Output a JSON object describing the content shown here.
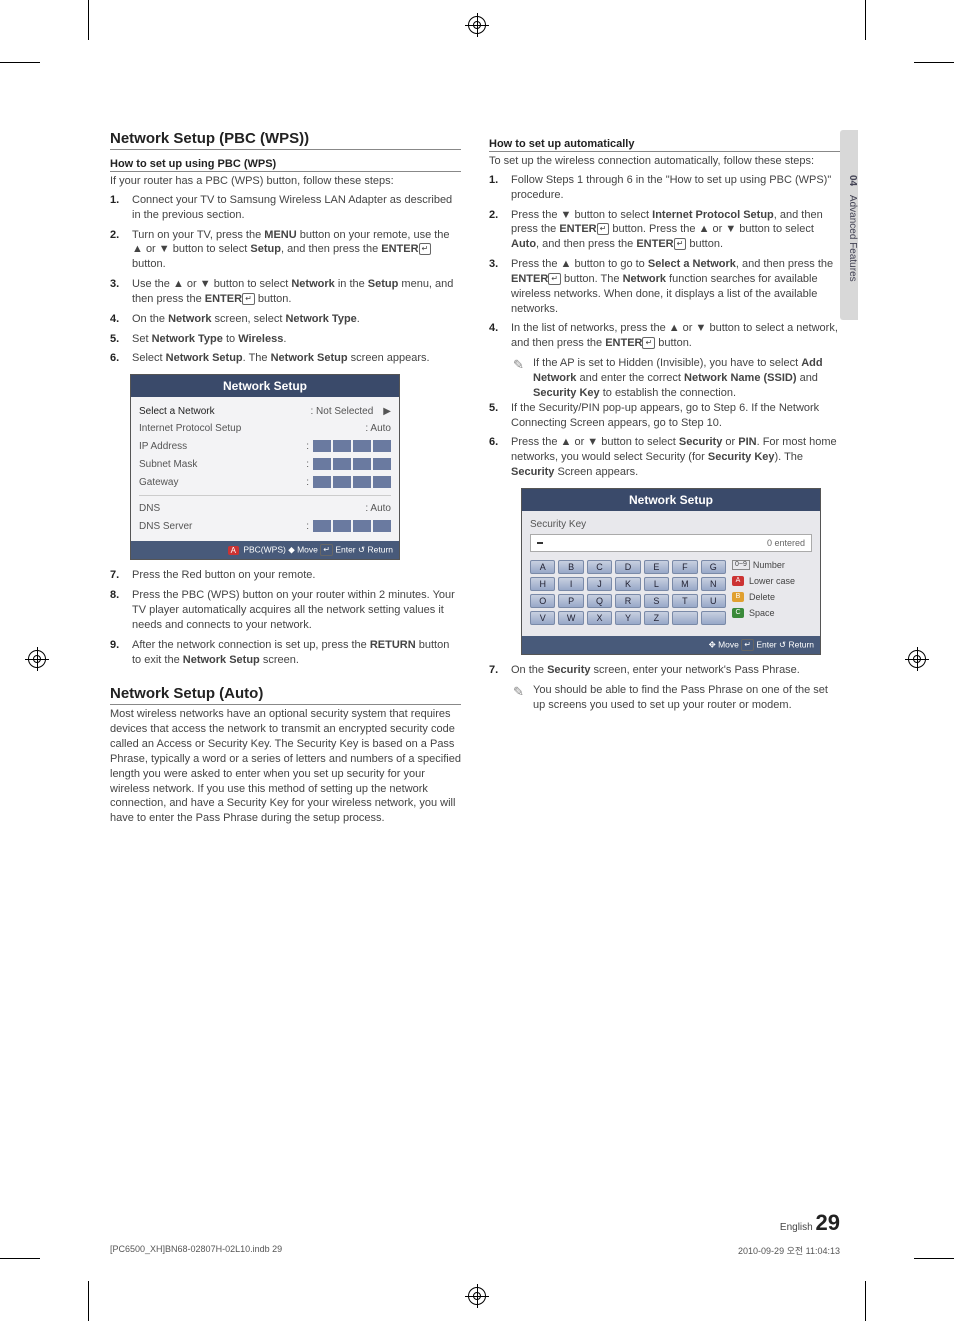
{
  "sideTab": {
    "num": "04",
    "label": "Advanced Features"
  },
  "left": {
    "h2a": "Network Setup (PBC (WPS))",
    "h3a": "How to set up using PBC (WPS)",
    "p1": "If your router has a PBC (WPS) button, follow these steps:",
    "steps1": [
      "Connect your TV to Samsung Wireless LAN Adapter as described in the previous section.",
      "Turn on your TV, press the <b>MENU</b> button on your remote, use the ▲ or ▼ button to select <b>Setup</b>, and then press the <b>ENTER</b><span class='enter-icon'>↵</span> button.",
      "Use the ▲ or ▼ button to select <b>Network</b> in the <b>Setup</b> menu, and then press the <b>ENTER</b><span class='enter-icon'>↵</span> button.",
      "On the <b>Network</b> screen, select <b>Network Type</b>.",
      "Set <b>Network Type</b> to <b>Wireless</b>.",
      "Select <b>Network Setup</b>. The <b>Network Setup</b> screen appears."
    ],
    "tv1": {
      "title": "Network Setup",
      "rows": [
        {
          "lbl": "Select a Network",
          "val": ": Not Selected",
          "arrow": true,
          "bold": true
        },
        {
          "lbl": "Internet Protocol Setup",
          "val": ": Auto"
        },
        {
          "lbl": "IP Address",
          "ip": true
        },
        {
          "lbl": "Subnet Mask",
          "ip": true
        },
        {
          "lbl": "Gateway",
          "ip": true
        }
      ],
      "rows2": [
        {
          "lbl": "DNS",
          "val": ": Auto"
        },
        {
          "lbl": "DNS Server",
          "ip": true
        }
      ],
      "foot": [
        {
          "cls": "tag-a",
          "t": "A"
        },
        {
          "txt": "PBC(WPS)"
        },
        {
          "cls": "tag-b",
          "t": "◆"
        },
        {
          "txt": "Move"
        },
        {
          "cls": "",
          "t": "↵"
        },
        {
          "txt": "Enter"
        },
        {
          "cls": "",
          "t": "↺"
        },
        {
          "txt": "Return"
        }
      ],
      "footText": "PBC(WPS)   Move   Enter   Return"
    },
    "steps1b": [
      "Press the Red button on your remote.",
      "Press the PBC (WPS) button on your router within 2 minutes. Your TV player automatically acquires all the network setting values it needs and connects to your network.",
      "After the network connection is set up, press the <b>RETURN</b> button to exit the <b>Network Setup</b> screen."
    ],
    "h2b": "Network Setup (Auto)",
    "p2": "Most wireless networks have an optional security system that requires devices that access the network to transmit an encrypted security code called an Access or Security Key. The Security Key is based on a Pass Phrase, typically a word or a series of letters and numbers of a specified length you were asked to enter when you set up security for your wireless network.  If you use this method of setting up the network connection, and have a Security Key for your wireless network, you will have to enter the Pass Phrase during the setup process."
  },
  "right": {
    "h3": "How to set up automatically",
    "p1": "To set up the wireless connection automatically, follow these steps:",
    "steps": [
      "Follow Steps 1 through 6 in the \"How to set up using PBC (WPS)\" procedure.",
      "Press the ▼ button to select <b>Internet Protocol Setup</b>, and then press the <b>ENTER</b><span class='enter-icon'>↵</span> button. Press the ▲ or ▼ button to select <b>Auto</b>, and then press the <b>ENTER</b><span class='enter-icon'>↵</span> button.",
      "Press the ▲ button to go to <b>Select a Network</b>, and then press the <b>ENTER</b><span class='enter-icon'>↵</span> button. The <b>Network</b> function searches for available wireless networks. When done, it displays a list of the available networks.",
      "In the list of networks, press the ▲ or ▼ button to select a network, and then press the <b>ENTER</b><span class='enter-icon'>↵</span> button."
    ],
    "note1": "If the AP is set to Hidden (Invisible), you have to select <b>Add Network</b> and enter the correct <b>Network Name (SSID)</b> and <b>Security Key</b> to establish the connection.",
    "steps2": [
      "If the Security/PIN pop-up appears, go to Step 6. If the Network Connecting Screen appears, go to Step 10.",
      "Press the ▲ or ▼ button to select <b>Security</b> or <b>PIN</b>. For most home networks, you would select Security (for <b>Security Key</b>). The <b>Security</b> Screen appears."
    ],
    "tv2": {
      "title": "Network Setup",
      "skLabel": "Security Key",
      "entered": "0 entered",
      "rows": [
        [
          "A",
          "B",
          "C",
          "D",
          "E",
          "F",
          "G"
        ],
        [
          "H",
          "I",
          "J",
          "K",
          "L",
          "M",
          "N"
        ],
        [
          "O",
          "P",
          "Q",
          "R",
          "S",
          "T",
          "U"
        ],
        [
          "V",
          "W",
          "X",
          "Y",
          "Z",
          "",
          ""
        ]
      ],
      "side": [
        {
          "icon": "0~9",
          "t": "Number"
        },
        {
          "icon": "A",
          "cls": "tag-a",
          "t": "Lower case"
        },
        {
          "icon": "B",
          "cls": "tag-c",
          "t": "Delete"
        },
        {
          "icon": "C",
          "cls": "tag-d",
          "t": "Space"
        }
      ],
      "footText": "Move   Enter   Return"
    },
    "steps3": [
      "On the <b>Security</b> screen, enter your network's Pass Phrase."
    ],
    "note2": "You should be able to find the Pass Phrase on one of the set up screens you used to set up your router or modem."
  },
  "pageNum": {
    "lang": "English",
    "num": "29"
  },
  "footer": {
    "left": "[PC6500_XH]BN68-02807H-02L10.indb   29",
    "right": "2010-09-29   오전 11:04:13"
  }
}
